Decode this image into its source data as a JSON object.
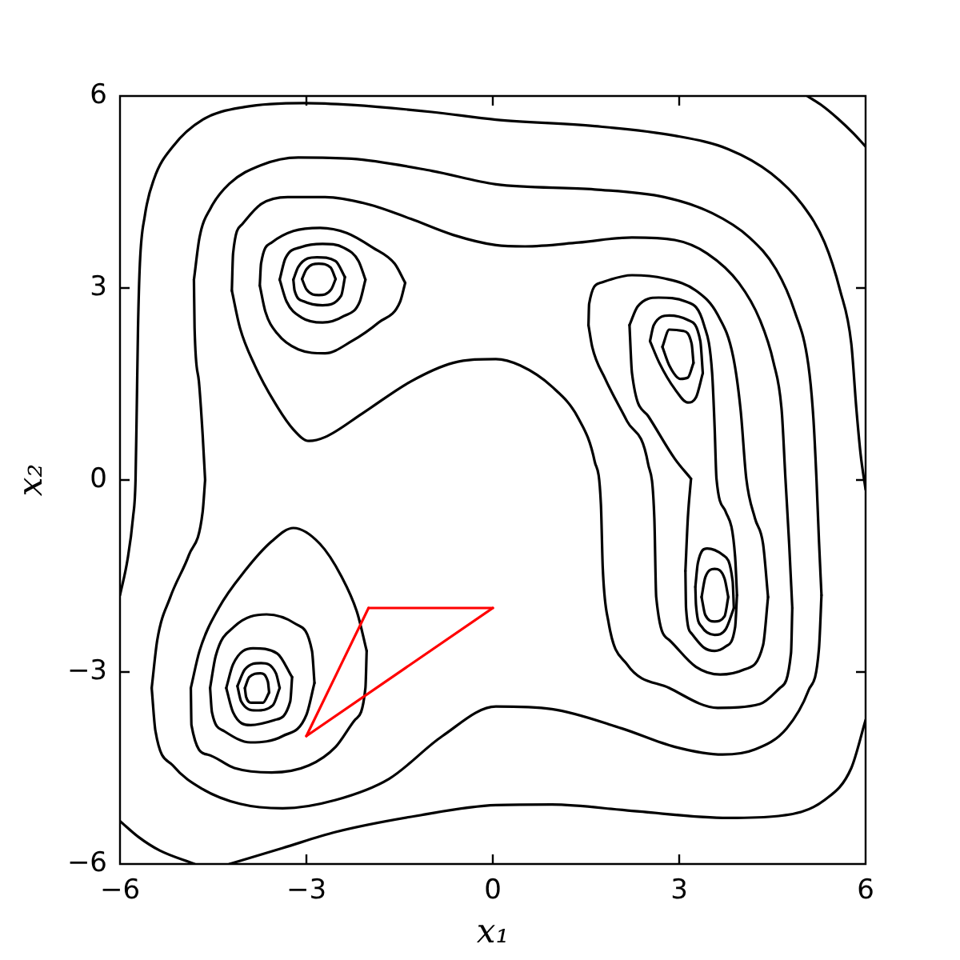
{
  "chart_data": {
    "type": "line",
    "xlabel": "x₁",
    "ylabel": "x₂",
    "xlim": [
      -6,
      6
    ],
    "ylim": [
      -6,
      6
    ],
    "xticks": [
      {
        "value": -6,
        "label": "−6"
      },
      {
        "value": -3,
        "label": "−3"
      },
      0,
      3,
      6
    ],
    "yticks": [
      {
        "value": -6,
        "label": "−6"
      },
      {
        "value": -3,
        "label": "−3"
      },
      0,
      3,
      6
    ],
    "series": [
      {
        "color": "#ff0000",
        "x": [
          -3,
          -2
        ],
        "values": [
          -4,
          -2
        ]
      },
      {
        "color": "#ff0000",
        "x": [
          -2,
          0
        ],
        "values": [
          -2,
          -2
        ]
      },
      {
        "color": "#ff0000",
        "x": [
          -3,
          0
        ],
        "values": [
          -4,
          -2
        ]
      },
      {
        "color": "#000000",
        "x": [
          5.06,
          5.3,
          5.55,
          5.8,
          6
        ],
        "values": [
          6,
          5.85,
          5.65,
          5.42,
          5.21
        ]
      },
      {
        "color": "#000000",
        "x": [
          -6,
          -5.88,
          -5.79,
          -5.75,
          -5.73,
          -5.71,
          -5.68,
          -5.6,
          -5.45,
          -5.15,
          -4.67,
          -3.99,
          -3.04,
          -2.27,
          -0.98,
          0.05,
          1.64,
          2.93,
          3.79,
          4.48,
          4.99,
          5.34,
          5.59,
          5.77,
          5.85,
          5.92,
          6
        ],
        "values": [
          -1.8,
          -1.25,
          -0.58,
          0,
          1.13,
          2.38,
          3.38,
          4.13,
          4.71,
          5.21,
          5.63,
          5.83,
          5.89,
          5.86,
          5.75,
          5.63,
          5.53,
          5.38,
          5.17,
          4.79,
          4.29,
          3.71,
          2.96,
          2.13,
          1.13,
          0.4,
          -0.15
        ]
      },
      {
        "color": "#000000",
        "x": [
          -4.24,
          -3.38,
          -2.53,
          -1.24,
          0.05,
          0.95,
          2.24,
          3.79,
          4.6,
          5.34,
          5.77,
          6
        ],
        "values": [
          -6,
          -5.75,
          -5.5,
          -5.25,
          -5.08,
          -5.07,
          -5.17,
          -5.28,
          -5.25,
          -5.0,
          -4.5,
          -3.75
        ]
      },
      {
        "color": "#000000",
        "x": [
          -6,
          -5.7,
          -5.36,
          -4.8
        ],
        "values": [
          -5.33,
          -5.58,
          -5.79,
          -6
        ]
      },
      {
        "color": "#000000",
        "x": [
          -4.81,
          -4.72,
          -4.54,
          -4.24,
          -3.73,
          -3.13,
          -2.27,
          -0.98,
          0.05,
          1.64,
          2.76,
          3.53,
          4.13,
          4.56,
          4.86,
          5.08,
          5.16,
          5.21,
          5.25,
          5.29
        ],
        "values": [
          3.13,
          3.79,
          4.25,
          4.63,
          4.92,
          5.04,
          5.02,
          4.83,
          4.62,
          4.54,
          4.42,
          4.17,
          3.79,
          3.29,
          2.63,
          1.79,
          0.96,
          0,
          -0.96,
          -1.8
        ]
      },
      {
        "color": "#000000",
        "x": [
          -4.81,
          -4.8,
          -4.73,
          -4.67,
          -4.63
        ],
        "values": [
          3.13,
          2.38,
          1.54,
          0.71,
          0
        ]
      },
      {
        "color": "#000000",
        "x": [
          -5.49,
          -5.4,
          -5.19,
          -4.89,
          -4.67,
          -4.63
        ],
        "values": [
          -3.25,
          -2.5,
          -1.83,
          -1.17,
          -0.5,
          0
        ]
      },
      {
        "color": "#000000",
        "x": [
          -5.49,
          -5.43,
          -5.15,
          -4.67,
          -4.07,
          -3.38,
          -2.53,
          -1.67,
          -0.81,
          0.05,
          0.95,
          2.07,
          2.93,
          3.7,
          4.22,
          4.73,
          5.08,
          5.25,
          5.29
        ],
        "values": [
          -3.25,
          -3.92,
          -4.46,
          -4.83,
          -5.06,
          -5.13,
          -5.0,
          -4.67,
          -4.0,
          -3.54,
          -3.58,
          -3.88,
          -4.17,
          -4.29,
          -4.21,
          -3.88,
          -3.29,
          -2.63,
          -1.8
        ]
      },
      {
        "color": "#000000",
        "x": [
          -4.2,
          -4.18,
          -4.03,
          -3.73,
          -3.3,
          -2.7,
          -2.01,
          -1.32,
          -0.64,
          0.05,
          0.52,
          1.38,
          2.24,
          2.93,
          3.45,
          3.96,
          4.3,
          4.52,
          4.65,
          4.71,
          4.77,
          4.82
        ],
        "values": [
          2.96,
          3.54,
          4.0,
          4.31,
          4.42,
          4.42,
          4.31,
          4.08,
          3.83,
          3.67,
          3.65,
          3.71,
          3.79,
          3.75,
          3.54,
          3.08,
          2.5,
          1.83,
          1.08,
          0.02,
          -1.0,
          -2.0
        ]
      },
      {
        "color": "#000000",
        "x": [
          -4.2,
          -4.07,
          -3.83,
          -3.51,
          -3.21,
          -2.96,
          -2.7,
          -2.1,
          -1.32,
          -0.64,
          0.05,
          0.44,
          0.95,
          1.38,
          1.64,
          1.74,
          1.77,
          1.86,
          2.16,
          2.84,
          3.62,
          4.3,
          4.62,
          4.8,
          4.82
        ],
        "values": [
          2.96,
          2.38,
          1.79,
          1.21,
          0.79,
          0.61,
          0.67,
          1.04,
          1.54,
          1.83,
          1.89,
          1.79,
          1.46,
          0.96,
          0.29,
          -0.38,
          -1.38,
          -2.21,
          -2.88,
          -3.25,
          -3.56,
          -3.5,
          -3.25,
          -2.7,
          -2.0
        ]
      },
      {
        "color": "#000000",
        "x": [
          -3.75,
          -3.73,
          -3.56,
          -3.21,
          -2.78,
          -2.35,
          -1.93,
          -1.58,
          -1.41
        ],
        "values": [
          3.04,
          3.38,
          3.71,
          3.89,
          3.94,
          3.86,
          3.63,
          3.38,
          3.08
        ]
      },
      {
        "color": "#000000",
        "x": [
          -3.75,
          -3.66,
          -3.47,
          -3.13,
          -2.7,
          -2.27,
          -1.84,
          -1.49,
          -1.41
        ],
        "values": [
          3.04,
          2.63,
          2.29,
          2.04,
          1.98,
          2.17,
          2.46,
          2.79,
          3.08
        ]
      },
      {
        "color": "#000000",
        "x": [
          -3.43,
          -3.34,
          -3.08,
          -2.74,
          -2.4,
          -2.16,
          -2.05
        ],
        "values": [
          3.13,
          3.46,
          3.64,
          3.69,
          3.63,
          3.42,
          3.13
        ]
      },
      {
        "color": "#000000",
        "x": [
          -3.43,
          -3.32,
          -3.08,
          -2.74,
          -2.4,
          -2.14,
          -2.05
        ],
        "values": [
          3.13,
          2.79,
          2.54,
          2.46,
          2.56,
          2.79,
          3.13
        ]
      },
      {
        "color": "#000000",
        "x": [
          -3.21,
          -3.13,
          -2.83,
          -2.53,
          -2.38
        ],
        "values": [
          3.13,
          3.33,
          3.48,
          3.42,
          3.17
        ]
      },
      {
        "color": "#000000",
        "x": [
          -3.21,
          -3.19,
          -3.04,
          -2.74,
          -2.44,
          -2.38
        ],
        "values": [
          3.13,
          2.96,
          2.79,
          2.73,
          2.88,
          3.17
        ]
      },
      {
        "color": "#000000",
        "x": [
          -3.07,
          -3.0,
          -2.8,
          -2.61,
          -2.53
        ],
        "values": [
          3.14,
          3.29,
          3.38,
          3.32,
          3.14
        ]
      },
      {
        "color": "#000000",
        "x": [
          -3.07,
          -3.0,
          -2.8,
          -2.6,
          -2.53
        ],
        "values": [
          3.14,
          2.98,
          2.89,
          2.98,
          3.14
        ]
      },
      {
        "color": "#000000",
        "x": [
          -4.86,
          -4.72,
          -4.41,
          -3.99,
          -3.56,
          -3.21,
          -2.78,
          -2.44,
          -2.18,
          -2.03
        ],
        "values": [
          -3.25,
          -2.67,
          -2.0,
          -1.42,
          -0.96,
          -0.75,
          -1.0,
          -1.5,
          -2.08,
          -2.67
        ]
      },
      {
        "color": "#000000",
        "x": [
          -4.86,
          -4.85,
          -4.59,
          -4.16,
          -3.56,
          -2.96,
          -2.53,
          -2.22,
          -2.05,
          -2.03
        ],
        "values": [
          -3.25,
          -3.83,
          -4.29,
          -4.5,
          -4.57,
          -4.46,
          -4.17,
          -3.75,
          -3.25,
          -2.67
        ]
      },
      {
        "color": "#000000",
        "x": [
          -4.55,
          -4.46,
          -4.16,
          -3.64,
          -3.17,
          -2.91,
          -2.87
        ],
        "values": [
          -3.25,
          -2.75,
          -2.29,
          -2.1,
          -2.25,
          -2.67,
          -3.17
        ]
      },
      {
        "color": "#000000",
        "x": [
          -4.55,
          -4.52,
          -4.33,
          -3.9,
          -3.38,
          -3.0,
          -2.87
        ],
        "values": [
          -3.25,
          -3.63,
          -3.92,
          -4.1,
          -4.0,
          -3.67,
          -3.17
        ]
      },
      {
        "color": "#000000",
        "x": [
          -4.29,
          -4.18,
          -3.86,
          -3.47,
          -3.23
        ],
        "values": [
          -3.25,
          -2.88,
          -2.63,
          -2.71,
          -3.08
        ]
      },
      {
        "color": "#000000",
        "x": [
          -4.29,
          -4.18,
          -3.9,
          -3.51,
          -3.26,
          -3.23
        ],
        "values": [
          -3.25,
          -3.63,
          -3.83,
          -3.75,
          -3.46,
          -3.08
        ]
      },
      {
        "color": "#000000",
        "x": [
          -4.11,
          -3.99,
          -3.73,
          -3.49,
          -3.43
        ],
        "values": [
          -3.22,
          -2.96,
          -2.86,
          -3.02,
          -3.25
        ]
      },
      {
        "color": "#000000",
        "x": [
          -4.11,
          -4.05,
          -3.81,
          -3.54,
          -3.43
        ],
        "values": [
          -3.22,
          -3.46,
          -3.6,
          -3.52,
          -3.25
        ]
      },
      {
        "color": "#000000",
        "x": [
          -3.99,
          -3.92,
          -3.74,
          -3.62,
          -3.6
        ],
        "values": [
          -3.25,
          -3.08,
          -3.02,
          -3.15,
          -3.32
        ]
      },
      {
        "color": "#000000",
        "x": [
          -3.99,
          -3.97,
          -3.88,
          -3.7,
          -3.6
        ],
        "values": [
          -3.25,
          -3.39,
          -3.48,
          -3.48,
          -3.32
        ]
      },
      {
        "color": "#000000",
        "x": [
          1.54,
          1.55,
          1.73,
          2.24,
          2.76,
          3.27,
          3.62,
          3.87,
          3.99,
          4.08,
          4.22,
          4.35,
          4.43
        ],
        "values": [
          2.42,
          2.75,
          3.08,
          3.2,
          3.15,
          2.96,
          2.58,
          1.92,
          1.08,
          0.02,
          -0.6,
          -1.0,
          -1.83
        ]
      },
      {
        "color": "#000000",
        "x": [
          1.54,
          1.6,
          1.81,
          2.16,
          2.5,
          2.6,
          2.63,
          2.84,
          3.27,
          3.66,
          4.05,
          4.35,
          4.43
        ],
        "values": [
          2.42,
          2.08,
          1.58,
          0.92,
          0.25,
          -0.6,
          -1.83,
          -2.5,
          -2.92,
          -3.04,
          -2.96,
          -2.58,
          -1.83
        ]
      },
      {
        "color": "#000000",
        "x": [
          2.2,
          2.33,
          2.67,
          3.1,
          3.4,
          3.53,
          3.57,
          3.6,
          3.75,
          3.9,
          3.93
        ],
        "values": [
          2.42,
          2.71,
          2.85,
          2.79,
          2.42,
          1.67,
          0.83,
          0.02,
          -0.5,
          -1.2,
          -1.8
        ]
      },
      {
        "color": "#000000",
        "x": [
          3.1,
          3.11,
          3.2,
          3.4,
          3.57,
          3.75,
          3.9,
          3.93
        ],
        "values": [
          -1.42,
          -2.0,
          -2.4,
          -2.62,
          -2.67,
          -2.6,
          -2.3,
          -1.8
        ]
      },
      {
        "color": "#000000",
        "x": [
          3.1,
          3.14,
          3.19
        ],
        "values": [
          -1.42,
          -0.58,
          0.02
        ]
      },
      {
        "color": "#000000",
        "x": [
          2.2,
          2.24,
          2.5,
          2.93,
          3.19
        ],
        "values": [
          2.42,
          1.67,
          1.0,
          0.33,
          0.02
        ]
      },
      {
        "color": "#000000",
        "x": [
          2.53,
          2.59,
          2.84,
          3.14,
          3.34,
          3.38
        ],
        "values": [
          2.17,
          2.42,
          2.57,
          2.5,
          2.17,
          1.67
        ]
      },
      {
        "color": "#000000",
        "x": [
          2.53,
          2.68,
          2.93,
          3.14,
          3.27,
          3.38
        ],
        "values": [
          2.17,
          1.83,
          1.42,
          1.21,
          1.29,
          1.67
        ]
      },
      {
        "color": "#000000",
        "x": [
          2.73,
          2.84,
          3.06,
          3.2,
          3.23
        ],
        "values": [
          2.08,
          2.35,
          2.33,
          2.13,
          1.83
        ]
      },
      {
        "color": "#000000",
        "x": [
          2.73,
          2.84,
          3.02,
          3.14,
          3.23
        ],
        "values": [
          2.08,
          1.79,
          1.58,
          1.6,
          1.83
        ]
      },
      {
        "color": "#000000",
        "x": [
          3.26,
          3.3,
          3.45,
          3.7,
          3.86,
          3.88
        ],
        "values": [
          -1.67,
          -1.3,
          -1.07,
          -1.17,
          -1.58,
          -2.0
        ]
      },
      {
        "color": "#000000",
        "x": [
          3.26,
          3.27,
          3.36,
          3.57,
          3.75,
          3.88
        ],
        "values": [
          -1.67,
          -1.95,
          -2.29,
          -2.42,
          -2.33,
          -2.0
        ]
      },
      {
        "color": "#000000",
        "x": [
          3.36,
          3.42,
          3.57,
          3.73,
          3.79
        ],
        "values": [
          -1.83,
          -1.52,
          -1.39,
          -1.54,
          -1.83
        ]
      },
      {
        "color": "#000000",
        "x": [
          3.36,
          3.42,
          3.57,
          3.73,
          3.79
        ],
        "values": [
          -1.83,
          -2.11,
          -2.21,
          -2.13,
          -1.83
        ]
      }
    ]
  }
}
